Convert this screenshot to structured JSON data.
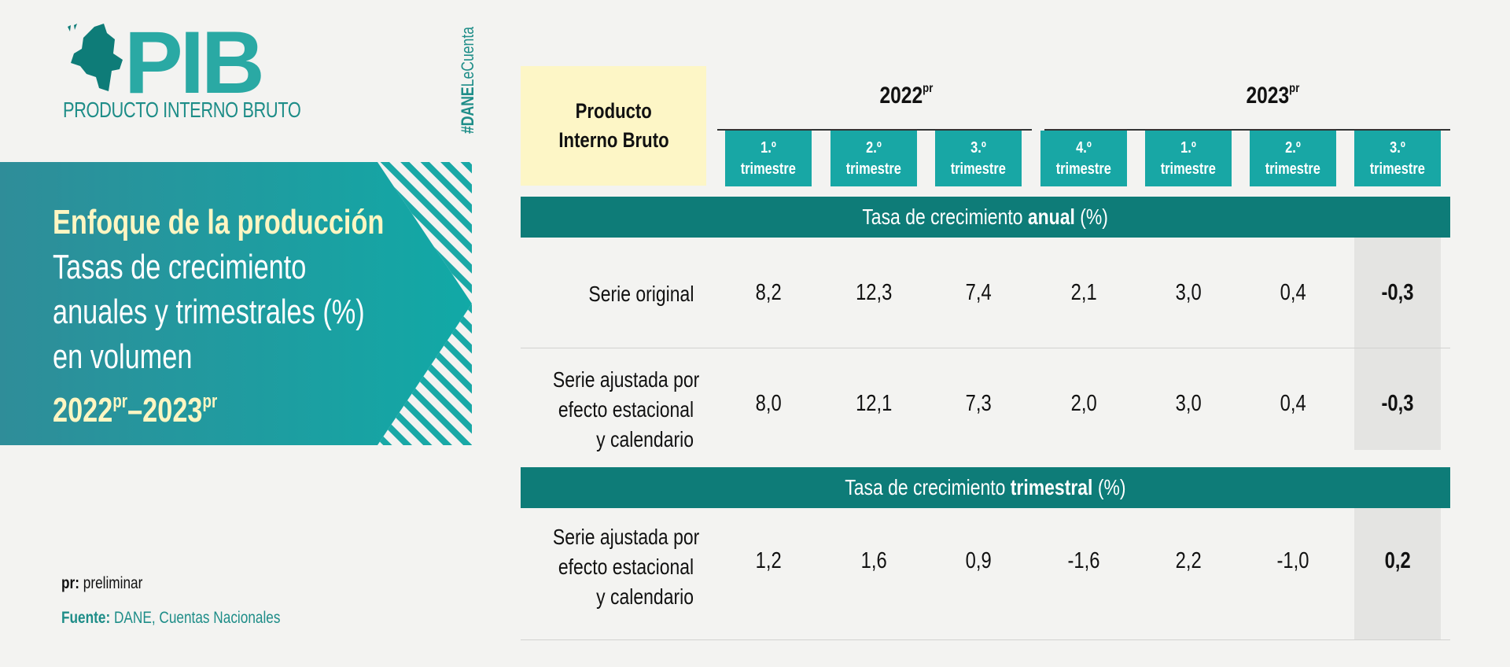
{
  "logo": {
    "title": "PIB",
    "subtitle": "PRODUCTO INTERNO BRUTO",
    "icon": "colombia-map-icon"
  },
  "hashtag": {
    "bold": "#DANE",
    "rest": "LeCuenta"
  },
  "banner": {
    "line1": "Enfoque de la producción",
    "line2": "Tasas de crecimiento",
    "line3": "anuales y trimestrales (%)",
    "line4": "en volumen",
    "period_a": "2022",
    "period_a_sup": "pr",
    "dash": "–",
    "period_b": "2023",
    "period_b_sup": "pr"
  },
  "notes": {
    "pr_label": "pr:",
    "pr_text": "preliminar",
    "source_label": "Fuente:",
    "source_text": "DANE, Cuentas Nacionales"
  },
  "table": {
    "header_line1": "Producto",
    "header_line2": "Interno Bruto",
    "years": [
      {
        "year": "2022",
        "sup": "pr"
      },
      {
        "year": "2023",
        "sup": "pr"
      }
    ],
    "quarters": [
      {
        "num": "1.º",
        "word": "trimestre"
      },
      {
        "num": "2.º",
        "word": "trimestre"
      },
      {
        "num": "3.º",
        "word": "trimestre"
      },
      {
        "num": "4.º",
        "word": "trimestre"
      },
      {
        "num": "1.º",
        "word": "trimestre"
      },
      {
        "num": "2.º",
        "word": "trimestre"
      },
      {
        "num": "3.º",
        "word": "trimestre"
      }
    ],
    "section_annual": {
      "prefix": "Tasa de crecimiento ",
      "bold": "anual",
      "suffix": " (%)"
    },
    "section_quarterly": {
      "prefix": "Tasa de crecimiento ",
      "bold": "trimestral",
      "suffix": " (%)"
    },
    "rows": [
      {
        "label": [
          "Serie original"
        ],
        "values": [
          "8,2",
          "12,3",
          "7,4",
          "2,1",
          "3,0",
          "0,4",
          "-0,3"
        ]
      },
      {
        "label": [
          "Serie ajustada por",
          "efecto estacional",
          "y calendario"
        ],
        "values": [
          "8,0",
          "12,1",
          "7,3",
          "2,0",
          "3,0",
          "0,4",
          "-0,3"
        ]
      },
      {
        "label": [
          "Serie ajustada por",
          "efecto estacional",
          "y calendario"
        ],
        "values": [
          "1,2",
          "1,6",
          "0,9",
          "-1,6",
          "2,2",
          "-1,0",
          "0,2"
        ]
      }
    ],
    "colors": {
      "teal_dark": "#0e7c78",
      "teal": "#18a7a5",
      "cream": "#fdf6c6",
      "highlight": "#e4e4e2"
    }
  }
}
